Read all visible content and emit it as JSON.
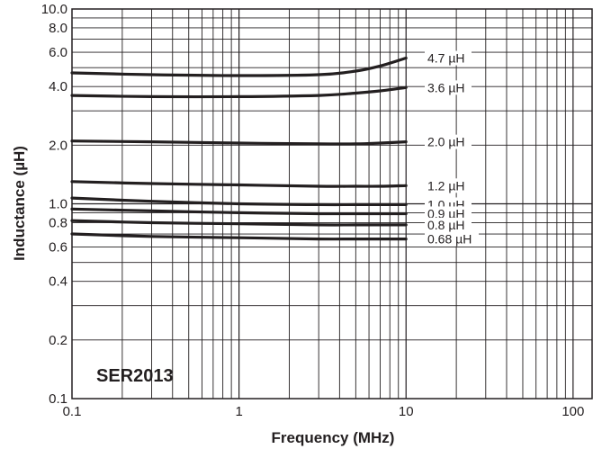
{
  "chart_data": {
    "type": "line",
    "title": "SER2013",
    "xlabel": "Frequency (MHz)",
    "ylabel": "Inductance (µH)",
    "xscale": "log",
    "yscale": "log",
    "xlim": [
      0.1,
      130
    ],
    "ylim": [
      0.1,
      10
    ],
    "grid": true,
    "x_ticks": [
      {
        "value": 0.1,
        "label": "0.1"
      },
      {
        "value": 1,
        "label": "1"
      },
      {
        "value": 10,
        "label": "10"
      },
      {
        "value": 100,
        "label": "100"
      }
    ],
    "y_ticks": [
      {
        "value": 0.1,
        "label": "0.1"
      },
      {
        "value": 0.2,
        "label": "0.2"
      },
      {
        "value": 0.4,
        "label": "0.4"
      },
      {
        "value": 0.6,
        "label": "0.6"
      },
      {
        "value": 0.8,
        "label": "0.8"
      },
      {
        "value": 1.0,
        "label": "1.0"
      },
      {
        "value": 2.0,
        "label": "2.0"
      },
      {
        "value": 4.0,
        "label": "4.0"
      },
      {
        "value": 6.0,
        "label": "6.0"
      },
      {
        "value": 8.0,
        "label": "8.0"
      },
      {
        "value": 10.0,
        "label": "10.0"
      }
    ],
    "series": [
      {
        "name": "4.7 µH",
        "x": [
          0.1,
          0.3,
          1,
          3,
          5,
          7,
          10
        ],
        "y": [
          4.7,
          4.6,
          4.55,
          4.6,
          4.8,
          5.1,
          5.6
        ]
      },
      {
        "name": "3.6 µH",
        "x": [
          0.1,
          0.3,
          1,
          3,
          5,
          7,
          10
        ],
        "y": [
          3.6,
          3.55,
          3.55,
          3.6,
          3.7,
          3.8,
          3.95
        ]
      },
      {
        "name": "2.0 µH",
        "x": [
          0.1,
          0.3,
          1,
          3,
          5,
          7,
          10
        ],
        "y": [
          2.1,
          2.08,
          2.05,
          2.03,
          2.03,
          2.05,
          2.08
        ]
      },
      {
        "name": "1.2 µH",
        "x": [
          0.1,
          0.3,
          1,
          3,
          5,
          7,
          10
        ],
        "y": [
          1.3,
          1.27,
          1.25,
          1.23,
          1.23,
          1.23,
          1.24
        ]
      },
      {
        "name": "1.0 µH",
        "x": [
          0.1,
          0.3,
          1,
          3,
          5,
          7,
          10
        ],
        "y": [
          1.07,
          1.03,
          1.0,
          0.99,
          0.99,
          0.99,
          0.99
        ]
      },
      {
        "name": "0.9 µH",
        "x": [
          0.1,
          0.3,
          1,
          3,
          5,
          7,
          10
        ],
        "y": [
          0.94,
          0.92,
          0.9,
          0.89,
          0.89,
          0.89,
          0.89
        ]
      },
      {
        "name": "0.8 µH",
        "x": [
          0.1,
          0.3,
          1,
          3,
          5,
          7,
          10
        ],
        "y": [
          0.82,
          0.8,
          0.79,
          0.78,
          0.78,
          0.78,
          0.78
        ]
      },
      {
        "name": "0.68 µH",
        "x": [
          0.1,
          0.3,
          1,
          3,
          5,
          7,
          10
        ],
        "y": [
          0.7,
          0.68,
          0.67,
          0.66,
          0.66,
          0.66,
          0.66
        ]
      }
    ]
  }
}
